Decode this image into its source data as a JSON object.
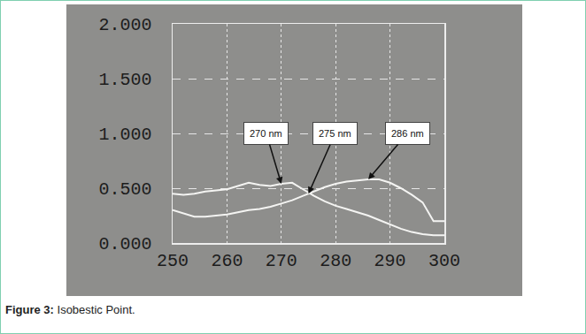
{
  "chart_data": {
    "type": "line",
    "title": "Figure 3: Isobestic Point.",
    "x": [
      250,
      252,
      254,
      256,
      258,
      260,
      262,
      264,
      266,
      268,
      270,
      272,
      274,
      276,
      278,
      280,
      282,
      284,
      286,
      288,
      290,
      292,
      294,
      296,
      298,
      300
    ],
    "series": [
      {
        "color": "#f4f4f2",
        "line_style": "solid",
        "values": [
          0.45,
          0.44,
          0.45,
          0.47,
          0.48,
          0.49,
          0.52,
          0.55,
          0.53,
          0.52,
          0.54,
          0.55,
          0.49,
          0.43,
          0.38,
          0.34,
          0.31,
          0.28,
          0.25,
          0.21,
          0.17,
          0.13,
          0.1,
          0.08,
          0.07,
          0.07
        ]
      },
      {
        "color": "#f4f4f2",
        "line_style": "solid",
        "values": [
          0.3,
          0.27,
          0.24,
          0.24,
          0.25,
          0.26,
          0.28,
          0.3,
          0.31,
          0.33,
          0.36,
          0.39,
          0.43,
          0.47,
          0.51,
          0.54,
          0.56,
          0.57,
          0.58,
          0.58,
          0.55,
          0.5,
          0.44,
          0.37,
          0.2,
          0.2
        ]
      }
    ],
    "xlim": [
      250,
      300
    ],
    "xticks": [
      250,
      260,
      270,
      280,
      290,
      300
    ],
    "ylim": [
      0,
      2
    ],
    "yticks": [
      {
        "value": 0,
        "label": "0.000"
      },
      {
        "value": 0.5,
        "label": "0.500"
      },
      {
        "value": 1,
        "label": "1.000"
      },
      {
        "value": 1.5,
        "label": "1.500"
      },
      {
        "value": 2,
        "label": "2.000"
      }
    ],
    "grid": true,
    "annotations": [
      {
        "text": "270 nm",
        "x": 270,
        "y": 0.54
      },
      {
        "text": "275 nm",
        "x": 275,
        "y": 0.45
      },
      {
        "text": "286 nm",
        "x": 286,
        "y": 0.58
      }
    ]
  }
}
